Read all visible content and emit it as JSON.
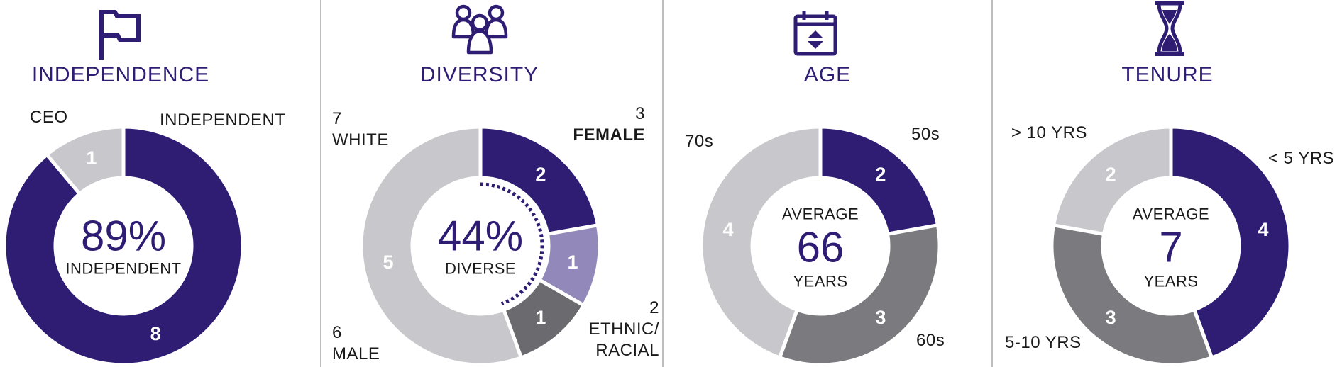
{
  "colors": {
    "purple_dark": "#2f1c73",
    "purple_light": "#9289ba",
    "gray_light": "#c8c8cc",
    "gray_mid": "#7b7a7f",
    "gray_dark": "#6b6a6e"
  },
  "chart_data": [
    {
      "type": "pie",
      "title": "INDEPENDENCE",
      "icon": "flag-icon",
      "center": {
        "value": "89%",
        "label": "INDEPENDENT"
      },
      "slices": [
        {
          "name": "INDEPENDENT",
          "value": 8,
          "value_label": "8",
          "color": "#2f1c73"
        },
        {
          "name": "CEO",
          "value": 1,
          "value_label": "1",
          "color": "#c8c8cc"
        }
      ]
    },
    {
      "type": "pie",
      "title": "DIVERSITY",
      "icon": "people-icon",
      "center": {
        "value": "44%",
        "label": "DIVERSE"
      },
      "callouts": {
        "female": {
          "count": "3",
          "text": "FEMALE"
        },
        "ethnic": {
          "count": "2",
          "line1": "ETHNIC/",
          "line2": "RACIAL"
        },
        "white": {
          "count": "7",
          "text": "WHITE"
        },
        "male": {
          "count": "6",
          "text": "MALE"
        }
      },
      "slices": [
        {
          "name": "Female",
          "value": 2,
          "value_label": "2",
          "color": "#2f1c73"
        },
        {
          "name": "Female ethnic/racial",
          "value": 1,
          "value_label": "1",
          "color": "#9289ba"
        },
        {
          "name": "Male ethnic/racial",
          "value": 1,
          "value_label": "1",
          "color": "#6b6a6e"
        },
        {
          "name": "Male white",
          "value": 5,
          "value_label": "5",
          "color": "#c8c8cc"
        }
      ]
    },
    {
      "type": "pie",
      "title": "AGE",
      "icon": "calendar-icon",
      "center": {
        "top": "AVERAGE",
        "value": "66",
        "bottom": "YEARS"
      },
      "slices": [
        {
          "name": "50s",
          "value": 2,
          "value_label": "2",
          "color": "#2f1c73"
        },
        {
          "name": "60s",
          "value": 3,
          "value_label": "3",
          "color": "#7b7a7f"
        },
        {
          "name": "70s",
          "value": 4,
          "value_label": "4",
          "color": "#c8c8cc"
        }
      ]
    },
    {
      "type": "pie",
      "title": "TENURE",
      "icon": "hourglass-icon",
      "center": {
        "top": "AVERAGE",
        "value": "7",
        "bottom": "YEARS"
      },
      "slices": [
        {
          "name": "< 5 YRS",
          "value": 4,
          "value_label": "4",
          "color": "#2f1c73"
        },
        {
          "name": "5-10 YRS",
          "value": 3,
          "value_label": "3",
          "color": "#7b7a7f"
        },
        {
          "name": "> 10 YRS",
          "value": 2,
          "value_label": "2",
          "color": "#c8c8cc"
        }
      ]
    }
  ]
}
